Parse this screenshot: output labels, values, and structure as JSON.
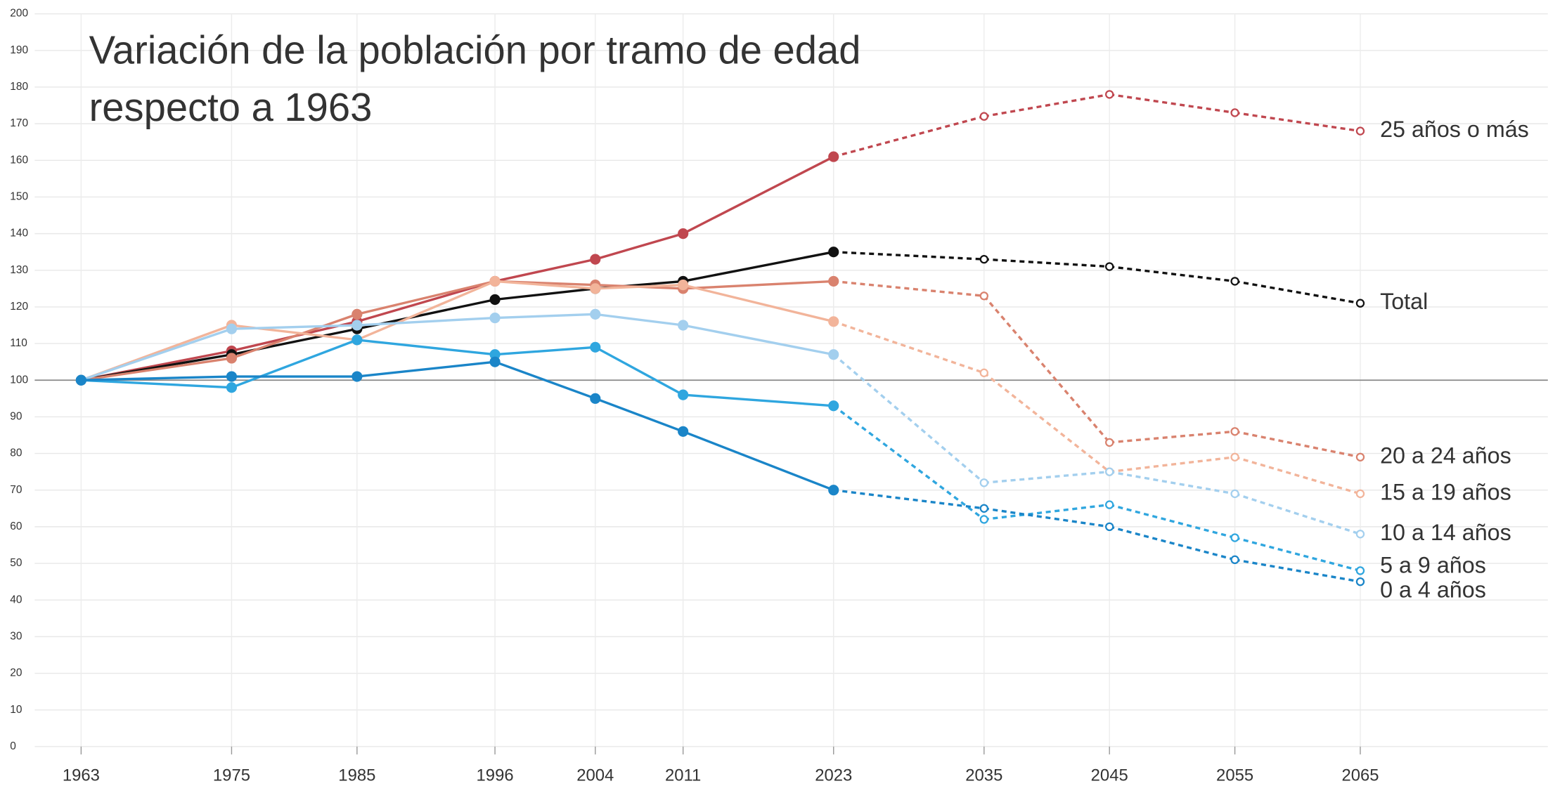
{
  "chart_data": {
    "type": "line",
    "title": [
      "Variación de la población por tramo de edad",
      "respecto a 1963"
    ],
    "x": [
      1963,
      1975,
      1985,
      1996,
      2004,
      2011,
      2023,
      2035,
      2045,
      2055,
      2065
    ],
    "xlim": [
      1963,
      2065
    ],
    "xticks": [
      1963,
      1975,
      1985,
      1996,
      2004,
      2011,
      2023,
      2035,
      2045,
      2055,
      2065
    ],
    "ylim": [
      0,
      200
    ],
    "yticks": [
      0,
      10,
      20,
      30,
      40,
      50,
      60,
      70,
      80,
      90,
      100,
      110,
      120,
      130,
      140,
      150,
      160,
      170,
      180,
      190,
      200
    ],
    "grid": true,
    "reference_line": 100,
    "dashed_from": 2023,
    "series": [
      {
        "name": "25 años o más",
        "color": "#c0474f",
        "values": [
          100,
          108,
          116,
          127,
          133,
          140,
          161,
          172,
          178,
          173,
          168
        ]
      },
      {
        "name": "Total",
        "color": "#111111",
        "values": [
          100,
          107,
          114,
          122,
          125,
          127,
          135,
          133,
          131,
          127,
          121
        ]
      },
      {
        "name": "20 a 24 años",
        "color": "#d9826e",
        "values": [
          100,
          106,
          118,
          127,
          126,
          125,
          127,
          123,
          83,
          86,
          79
        ]
      },
      {
        "name": "15 a 19 años",
        "color": "#f2b49a",
        "values": [
          100,
          115,
          111,
          127,
          125,
          126,
          116,
          102,
          75,
          79,
          69
        ]
      },
      {
        "name": "10 a 14 años",
        "color": "#a3cfee",
        "values": [
          100,
          114,
          115,
          117,
          118,
          115,
          107,
          72,
          75,
          69,
          58
        ]
      },
      {
        "name": "5 a 9 años",
        "color": "#2fa6df",
        "values": [
          100,
          98,
          111,
          107,
          109,
          96,
          93,
          62,
          66,
          57,
          48
        ]
      },
      {
        "name": "0 a 4 años",
        "color": "#1a85c8",
        "values": [
          100,
          101,
          101,
          105,
          95,
          86,
          70,
          65,
          60,
          51,
          45
        ]
      }
    ]
  }
}
